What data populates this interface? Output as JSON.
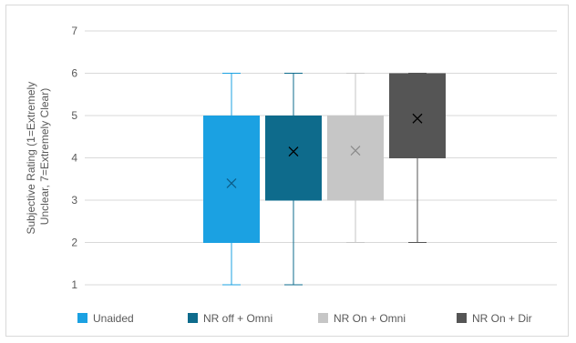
{
  "chart_data": {
    "type": "box",
    "ylabel_lines": [
      "Subjective Rating (1=Extremely",
      "Unclear, 7=Extremely Clear)"
    ],
    "ylim": [
      1,
      7
    ],
    "yticks": [
      "1",
      "2",
      "3",
      "4",
      "5",
      "6",
      "7"
    ],
    "grid": true,
    "legend_position": "bottom",
    "series": [
      {
        "name": "Unaided",
        "color": "#1ba1e2",
        "min": 1,
        "q1": 2,
        "median": 2,
        "q3": 5,
        "max": 6,
        "mean": 3.4
      },
      {
        "name": "NR off + Omni",
        "color": "#0e6b8c",
        "min": 1,
        "q1": 3,
        "median": 3,
        "q3": 5,
        "max": 6,
        "mean": 4.15
      },
      {
        "name": "NR On + Omni",
        "color": "#c6c6c6",
        "min": 2,
        "q1": 3,
        "median": 3,
        "q3": 5,
        "max": 6,
        "mean": 4.17
      },
      {
        "name": "NR On + Dir",
        "color": "#555555",
        "min": 2,
        "q1": 4,
        "median": 4,
        "q3": 6,
        "max": 6,
        "mean": 4.93
      }
    ]
  }
}
